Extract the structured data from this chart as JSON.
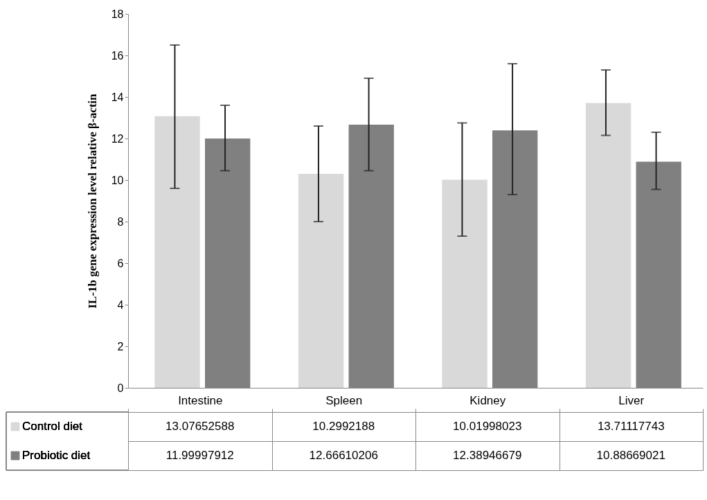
{
  "chart_data": {
    "type": "bar",
    "ylabel": "IL-1b gene expression level relative β-actin",
    "categories": [
      "Intestine",
      "Spleen",
      "Kidney",
      "Liver"
    ],
    "series": [
      {
        "name": "Control diet",
        "color": "#d9d9d9",
        "values": [
          13.07652588,
          10.2992188,
          10.01998023,
          13.71117743
        ],
        "errors": [
          [
            9.6,
            16.5
          ],
          [
            8.0,
            12.6
          ],
          [
            7.3,
            12.75
          ],
          [
            12.15,
            15.3
          ]
        ]
      },
      {
        "name": "Probiotic diet",
        "color": "#808080",
        "values": [
          11.99997912,
          12.66610206,
          12.38946679,
          10.88669021
        ],
        "errors": [
          [
            10.45,
            13.6
          ],
          [
            10.45,
            14.9
          ],
          [
            9.3,
            15.6
          ],
          [
            9.55,
            12.3
          ]
        ]
      }
    ],
    "ylim": [
      0,
      18
    ],
    "yticks": [
      0,
      2,
      4,
      6,
      8,
      10,
      12,
      14,
      16,
      18
    ],
    "data_labels": true,
    "legend": "bottom"
  }
}
